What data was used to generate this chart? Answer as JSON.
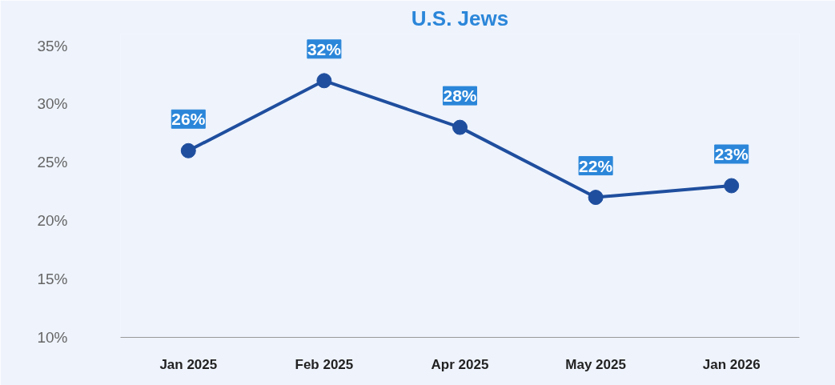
{
  "chart_data": {
    "type": "line",
    "title": "U.S. Jews",
    "categories": [
      "Jan 2025",
      "Feb 2025",
      "Apr 2025",
      "May 2025",
      "Jan 2026"
    ],
    "series": [
      {
        "color": "#1f4e9e",
        "values": [
          26,
          32,
          28,
          22,
          23
        ],
        "value_labels": [
          "26%",
          "32%",
          "28%",
          "22%",
          "23%"
        ]
      }
    ],
    "ylim": [
      10,
      36
    ],
    "yticks": [
      {
        "value": 10,
        "label": "10%"
      },
      {
        "value": 15,
        "label": "15%"
      },
      {
        "value": 20,
        "label": "20%"
      },
      {
        "value": 25,
        "label": "25%"
      },
      {
        "value": 30,
        "label": "30%"
      },
      {
        "value": 35,
        "label": "35%"
      }
    ],
    "grid": false,
    "marker": "circle",
    "line_style": "solid"
  }
}
